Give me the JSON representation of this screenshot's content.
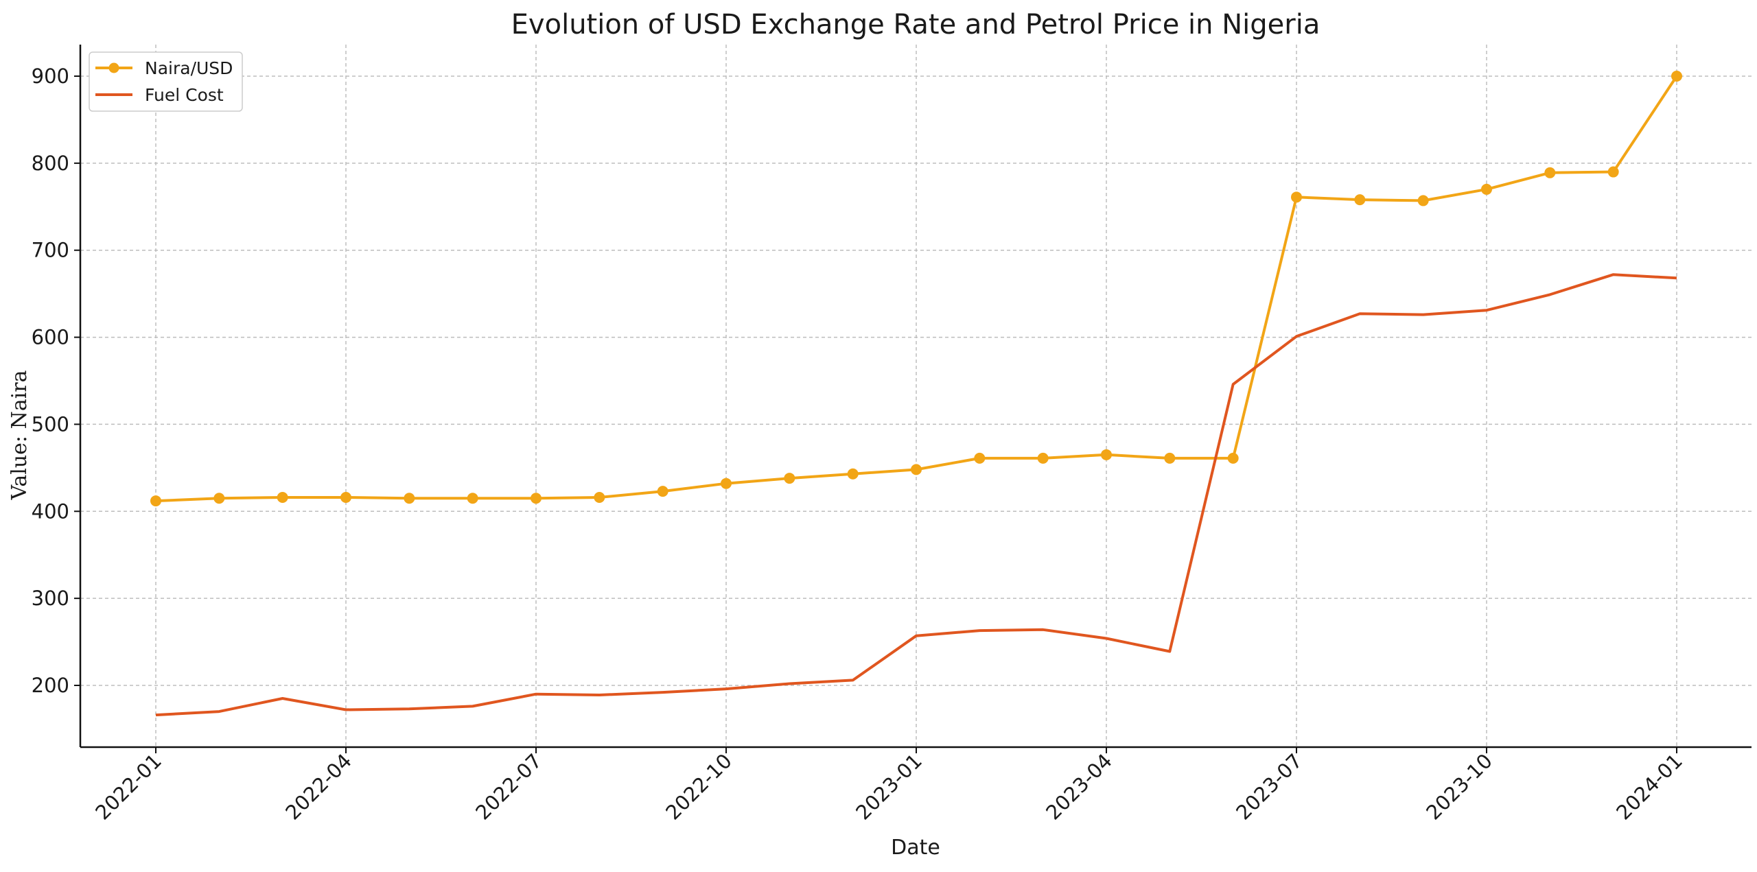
{
  "chart_data": {
    "type": "line",
    "title": "Evolution of USD Exchange Rate and Petrol Price in Nigeria",
    "xlabel": "Date",
    "ylabel": "Value: Naira",
    "x": [
      "2022-01",
      "2022-02",
      "2022-03",
      "2022-04",
      "2022-05",
      "2022-06",
      "2022-07",
      "2022-08",
      "2022-09",
      "2022-10",
      "2022-11",
      "2022-12",
      "2023-01",
      "2023-02",
      "2023-03",
      "2023-04",
      "2023-05",
      "2023-06",
      "2023-07",
      "2023-08",
      "2023-09",
      "2023-10",
      "2023-11",
      "2023-12",
      "2024-01"
    ],
    "x_ticks": [
      "2022-01",
      "2022-04",
      "2022-07",
      "2022-10",
      "2023-01",
      "2023-04",
      "2023-07",
      "2023-10",
      "2024-01"
    ],
    "y_ticks": [
      200,
      300,
      400,
      500,
      600,
      700,
      800,
      900
    ],
    "y_tick_labels": [
      "200",
      "300",
      "400",
      "500",
      "600",
      "700",
      "800",
      "900"
    ],
    "ylim": [
      130,
      935
    ],
    "grid": true,
    "legend_position": "top-left",
    "series": [
      {
        "name": "Naira/USD",
        "color": "#F2A516",
        "marker": "circle",
        "values": [
          412,
          415,
          416,
          416,
          415,
          415,
          415,
          416,
          423,
          432,
          438,
          443,
          448,
          461,
          461,
          465,
          461,
          461,
          761,
          758,
          757,
          770,
          789,
          790,
          900
        ]
      },
      {
        "name": "Fuel Cost",
        "color": "#E0561F",
        "marker": "none",
        "values": [
          166,
          170,
          185,
          172,
          173,
          176,
          190,
          189,
          192,
          196,
          202,
          206,
          257,
          263,
          264,
          254,
          239,
          546,
          601,
          627,
          626,
          631,
          649,
          672,
          668
        ]
      }
    ]
  }
}
